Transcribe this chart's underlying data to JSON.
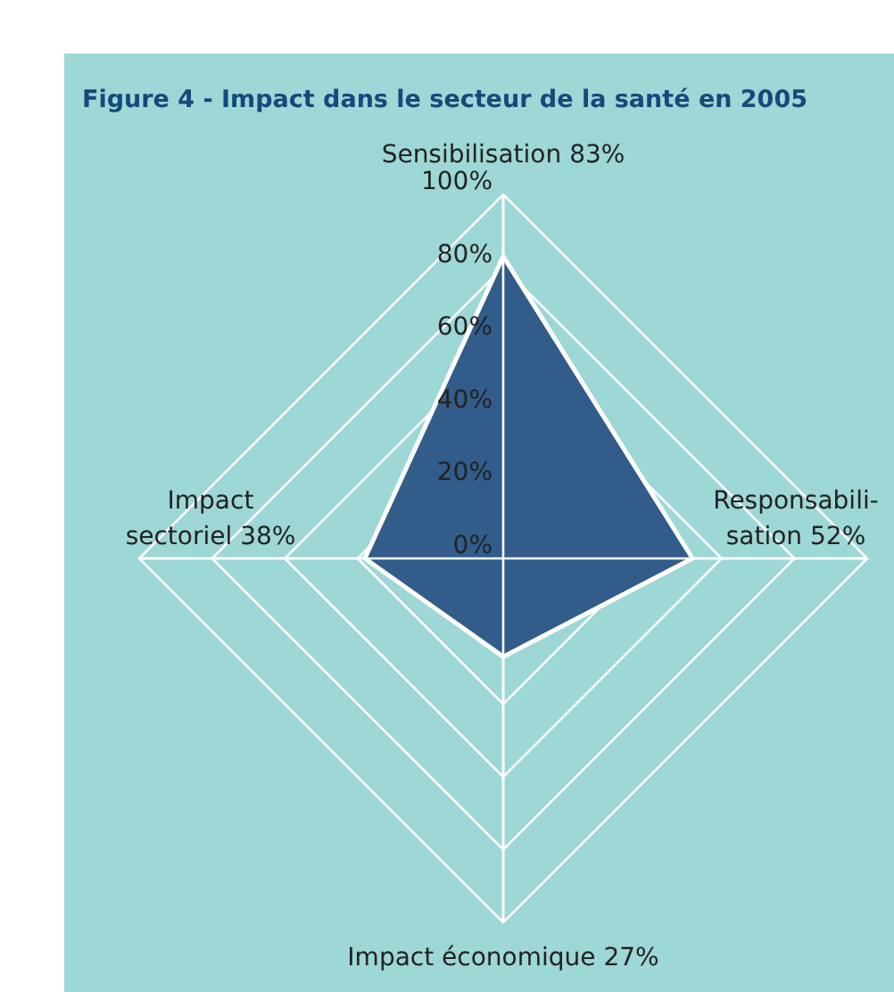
{
  "chart_data": {
    "type": "radar",
    "title": "Figure 4 - Impact dans le secteur de la santé en 2005",
    "categories": [
      "Sensibilisation 83%",
      "Responsabili-\nsation 52%",
      "Impact économique 27%",
      "Impact\nsectoriel 38%"
    ],
    "series": [
      {
        "color": "#325c8a",
        "values": [
          83,
          52,
          27,
          38
        ]
      }
    ],
    "ylim": [
      0,
      100
    ],
    "yticks": [
      {
        "value": 0,
        "label": "0%"
      },
      {
        "value": 20,
        "label": "20%"
      },
      {
        "value": 40,
        "label": "40%"
      },
      {
        "value": 60,
        "label": "60%"
      },
      {
        "value": 80,
        "label": "80%"
      },
      {
        "value": 100,
        "label": "100%"
      }
    ],
    "grid": true
  }
}
